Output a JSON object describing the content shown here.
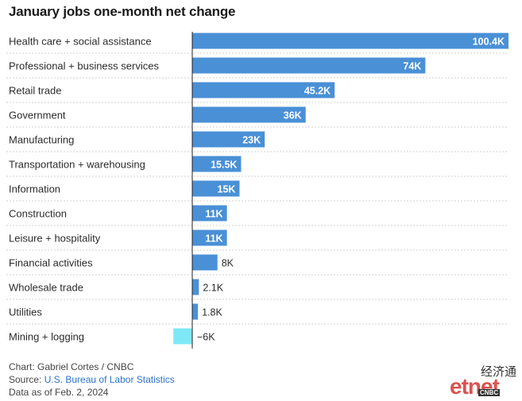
{
  "chart_data": {
    "type": "bar",
    "orientation": "horizontal",
    "title": "January jobs one-month net change",
    "categories": [
      "Health care + social assistance",
      "Professional + business services",
      "Retail trade",
      "Government",
      "Manufacturing",
      "Transportation + warehousing",
      "Information",
      "Construction",
      "Leisure + hospitality",
      "Financial activities",
      "Wholesale trade",
      "Utilities",
      "Mining + logging"
    ],
    "values": [
      100.4,
      74,
      45.2,
      36,
      23,
      15.5,
      15,
      11,
      11,
      8,
      2.1,
      1.8,
      -6
    ],
    "value_labels": [
      "100.4K",
      "74K",
      "45.2K",
      "36K",
      "23K",
      "15.5K",
      "15K",
      "11K",
      "11K",
      "8K",
      "2.1K",
      "1.8K",
      "−6K"
    ],
    "xlim": [
      -6,
      100.4
    ],
    "grid": false,
    "colors": {
      "positive": "#4a90d6",
      "negative": "#7ee8f7"
    }
  },
  "footer": {
    "credit": "Chart: Gabriel Cortes / CNBC",
    "source_prefix": "Source: ",
    "source_link": "U.S. Bureau of Labor Statistics",
    "date": "Data as of Feb. 2, 2024"
  },
  "watermark": {
    "cn": "经济通",
    "brand": "etnet",
    "badge": "CNBC"
  }
}
